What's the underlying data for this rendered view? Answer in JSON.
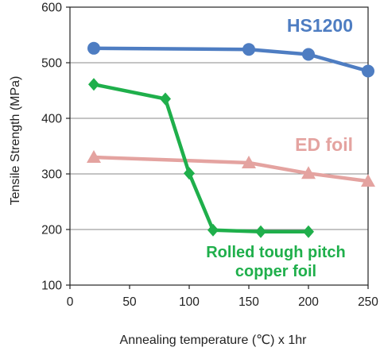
{
  "chart_data": {
    "type": "line",
    "title": "",
    "xlabel": "Annealing temperature (℃) x 1hr",
    "ylabel": "Tensile Strength (MPa)",
    "xlim": [
      0,
      250
    ],
    "ylim": [
      100,
      600
    ],
    "xticks": [
      0,
      50,
      100,
      150,
      200,
      250
    ],
    "yticks": [
      100,
      200,
      300,
      400,
      500,
      600
    ],
    "grid": {
      "y": true,
      "x": false
    },
    "legend": "none",
    "series": [
      {
        "name": "HS1200",
        "color": "#4E7DC2",
        "marker": "circle",
        "x": [
          20,
          150,
          200,
          250
        ],
        "y": [
          526,
          524,
          515,
          485
        ]
      },
      {
        "name": "ED foil",
        "color": "#E4A3A0",
        "marker": "triangle",
        "x": [
          20,
          150,
          200,
          250
        ],
        "y": [
          330,
          320,
          301,
          287
        ]
      },
      {
        "name": "Rolled tough pitch copper foil",
        "label_lines": [
          "Rolled tough pitch",
          "copper foil"
        ],
        "color": "#1FAF4B",
        "marker": "diamond",
        "x": [
          20,
          80,
          100,
          120,
          160,
          200
        ],
        "y": [
          461,
          435,
          301,
          199,
          196,
          196
        ]
      }
    ]
  }
}
